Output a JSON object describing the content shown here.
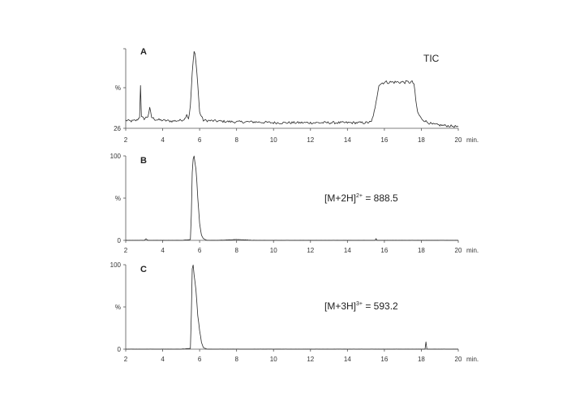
{
  "chart_data": [
    {
      "type": "line",
      "panel": "A",
      "annotation": "TIC",
      "x_unit": "min.",
      "xlim": [
        2,
        20
      ],
      "x_ticks": [
        2,
        4,
        6,
        8,
        10,
        12,
        14,
        16,
        18,
        20
      ],
      "y_tick_labels": [
        "%",
        "26"
      ],
      "ylim": [
        0,
        100
      ],
      "series": [
        {
          "x": [
            2.0,
            2.3,
            2.6,
            2.75,
            2.8,
            2.85,
            3.0,
            3.2,
            3.3,
            3.4,
            3.6,
            4.0,
            4.5,
            5.0,
            5.2,
            5.3,
            5.4,
            5.5,
            5.6,
            5.7,
            5.75,
            5.8,
            5.9,
            6.0,
            6.2,
            7.0,
            8.0,
            9.0,
            10.0,
            11.0,
            12.0,
            13.0,
            14.0,
            15.0,
            15.3,
            15.5,
            15.6,
            15.7,
            16.0,
            17.0,
            17.5,
            17.6,
            17.7,
            17.8,
            18.0,
            18.3,
            18.6,
            19.0,
            19.5,
            20.0
          ],
          "y": [
            10,
            9,
            10,
            14,
            55,
            14,
            12,
            15,
            25,
            14,
            11,
            10,
            9,
            10,
            12,
            18,
            12,
            28,
            70,
            96,
            93,
            85,
            55,
            20,
            10,
            9,
            8,
            8,
            7,
            7,
            7,
            7,
            7,
            7,
            8,
            25,
            40,
            55,
            58,
            58,
            58,
            56,
            35,
            20,
            12,
            8,
            5,
            4,
            3,
            2
          ]
        }
      ]
    },
    {
      "type": "line",
      "panel": "B",
      "annotation": {
        "prefix": "[M+2H]",
        "charge": "2+",
        "value": " = 888.5"
      },
      "x_unit": "min.",
      "xlim": [
        2,
        20
      ],
      "x_ticks": [
        2,
        4,
        6,
        8,
        10,
        12,
        14,
        16,
        18,
        20
      ],
      "y_tick_labels": [
        "100",
        "%",
        "0"
      ],
      "ylim": [
        0,
        100
      ],
      "series": [
        {
          "x": [
            2.0,
            3.0,
            3.1,
            3.2,
            4.0,
            5.0,
            5.5,
            5.55,
            5.6,
            5.65,
            5.7,
            5.75,
            5.8,
            5.85,
            5.9,
            6.0,
            6.1,
            6.2,
            6.4,
            7.0,
            8.0,
            9.0,
            12.0,
            15.5,
            15.55,
            15.6,
            18.0,
            20.0
          ],
          "y": [
            0,
            0,
            2,
            0,
            0,
            0,
            1,
            30,
            80,
            97,
            100,
            92,
            85,
            70,
            50,
            20,
            6,
            2,
            0,
            0,
            1,
            0,
            0,
            0,
            2,
            0,
            0,
            0
          ]
        }
      ]
    },
    {
      "type": "line",
      "panel": "C",
      "annotation": {
        "prefix": "[M+3H]",
        "charge": "3+",
        "value": " = 593.2"
      },
      "x_unit": "min.",
      "xlim": [
        2,
        20
      ],
      "x_ticks": [
        2,
        4,
        6,
        8,
        10,
        12,
        14,
        16,
        18,
        20
      ],
      "y_tick_labels": [
        "100",
        "%",
        "0"
      ],
      "ylim": [
        0,
        100
      ],
      "series": [
        {
          "x": [
            2.0,
            4.0,
            5.0,
            5.5,
            5.55,
            5.6,
            5.65,
            5.7,
            5.75,
            5.8,
            5.85,
            5.9,
            6.0,
            6.1,
            6.2,
            6.4,
            8.0,
            12.0,
            16.0,
            18.2,
            18.25,
            18.3,
            18.35,
            20.0
          ],
          "y": [
            0,
            0,
            0,
            1,
            40,
            95,
            100,
            88,
            80,
            70,
            55,
            40,
            22,
            8,
            2,
            0,
            0,
            0,
            0,
            0,
            9,
            0,
            0,
            0
          ]
        }
      ]
    }
  ]
}
